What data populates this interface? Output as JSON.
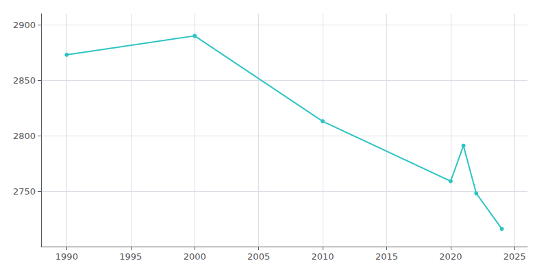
{
  "chart_data": {
    "type": "line",
    "x": [
      1990,
      2000,
      2010,
      2020,
      2021,
      2022,
      2024
    ],
    "values": [
      2873,
      2890,
      2813,
      2759,
      2791,
      2748,
      2716
    ],
    "color": "#2EC4C4",
    "marker": "circle",
    "xlim": [
      1988,
      2026
    ],
    "ylim": [
      2700,
      2910
    ],
    "xticks": [
      1990,
      1995,
      2000,
      2005,
      2010,
      2015,
      2020,
      2025
    ],
    "yticks": [
      2750,
      2800,
      2850,
      2900
    ],
    "grid": true
  }
}
